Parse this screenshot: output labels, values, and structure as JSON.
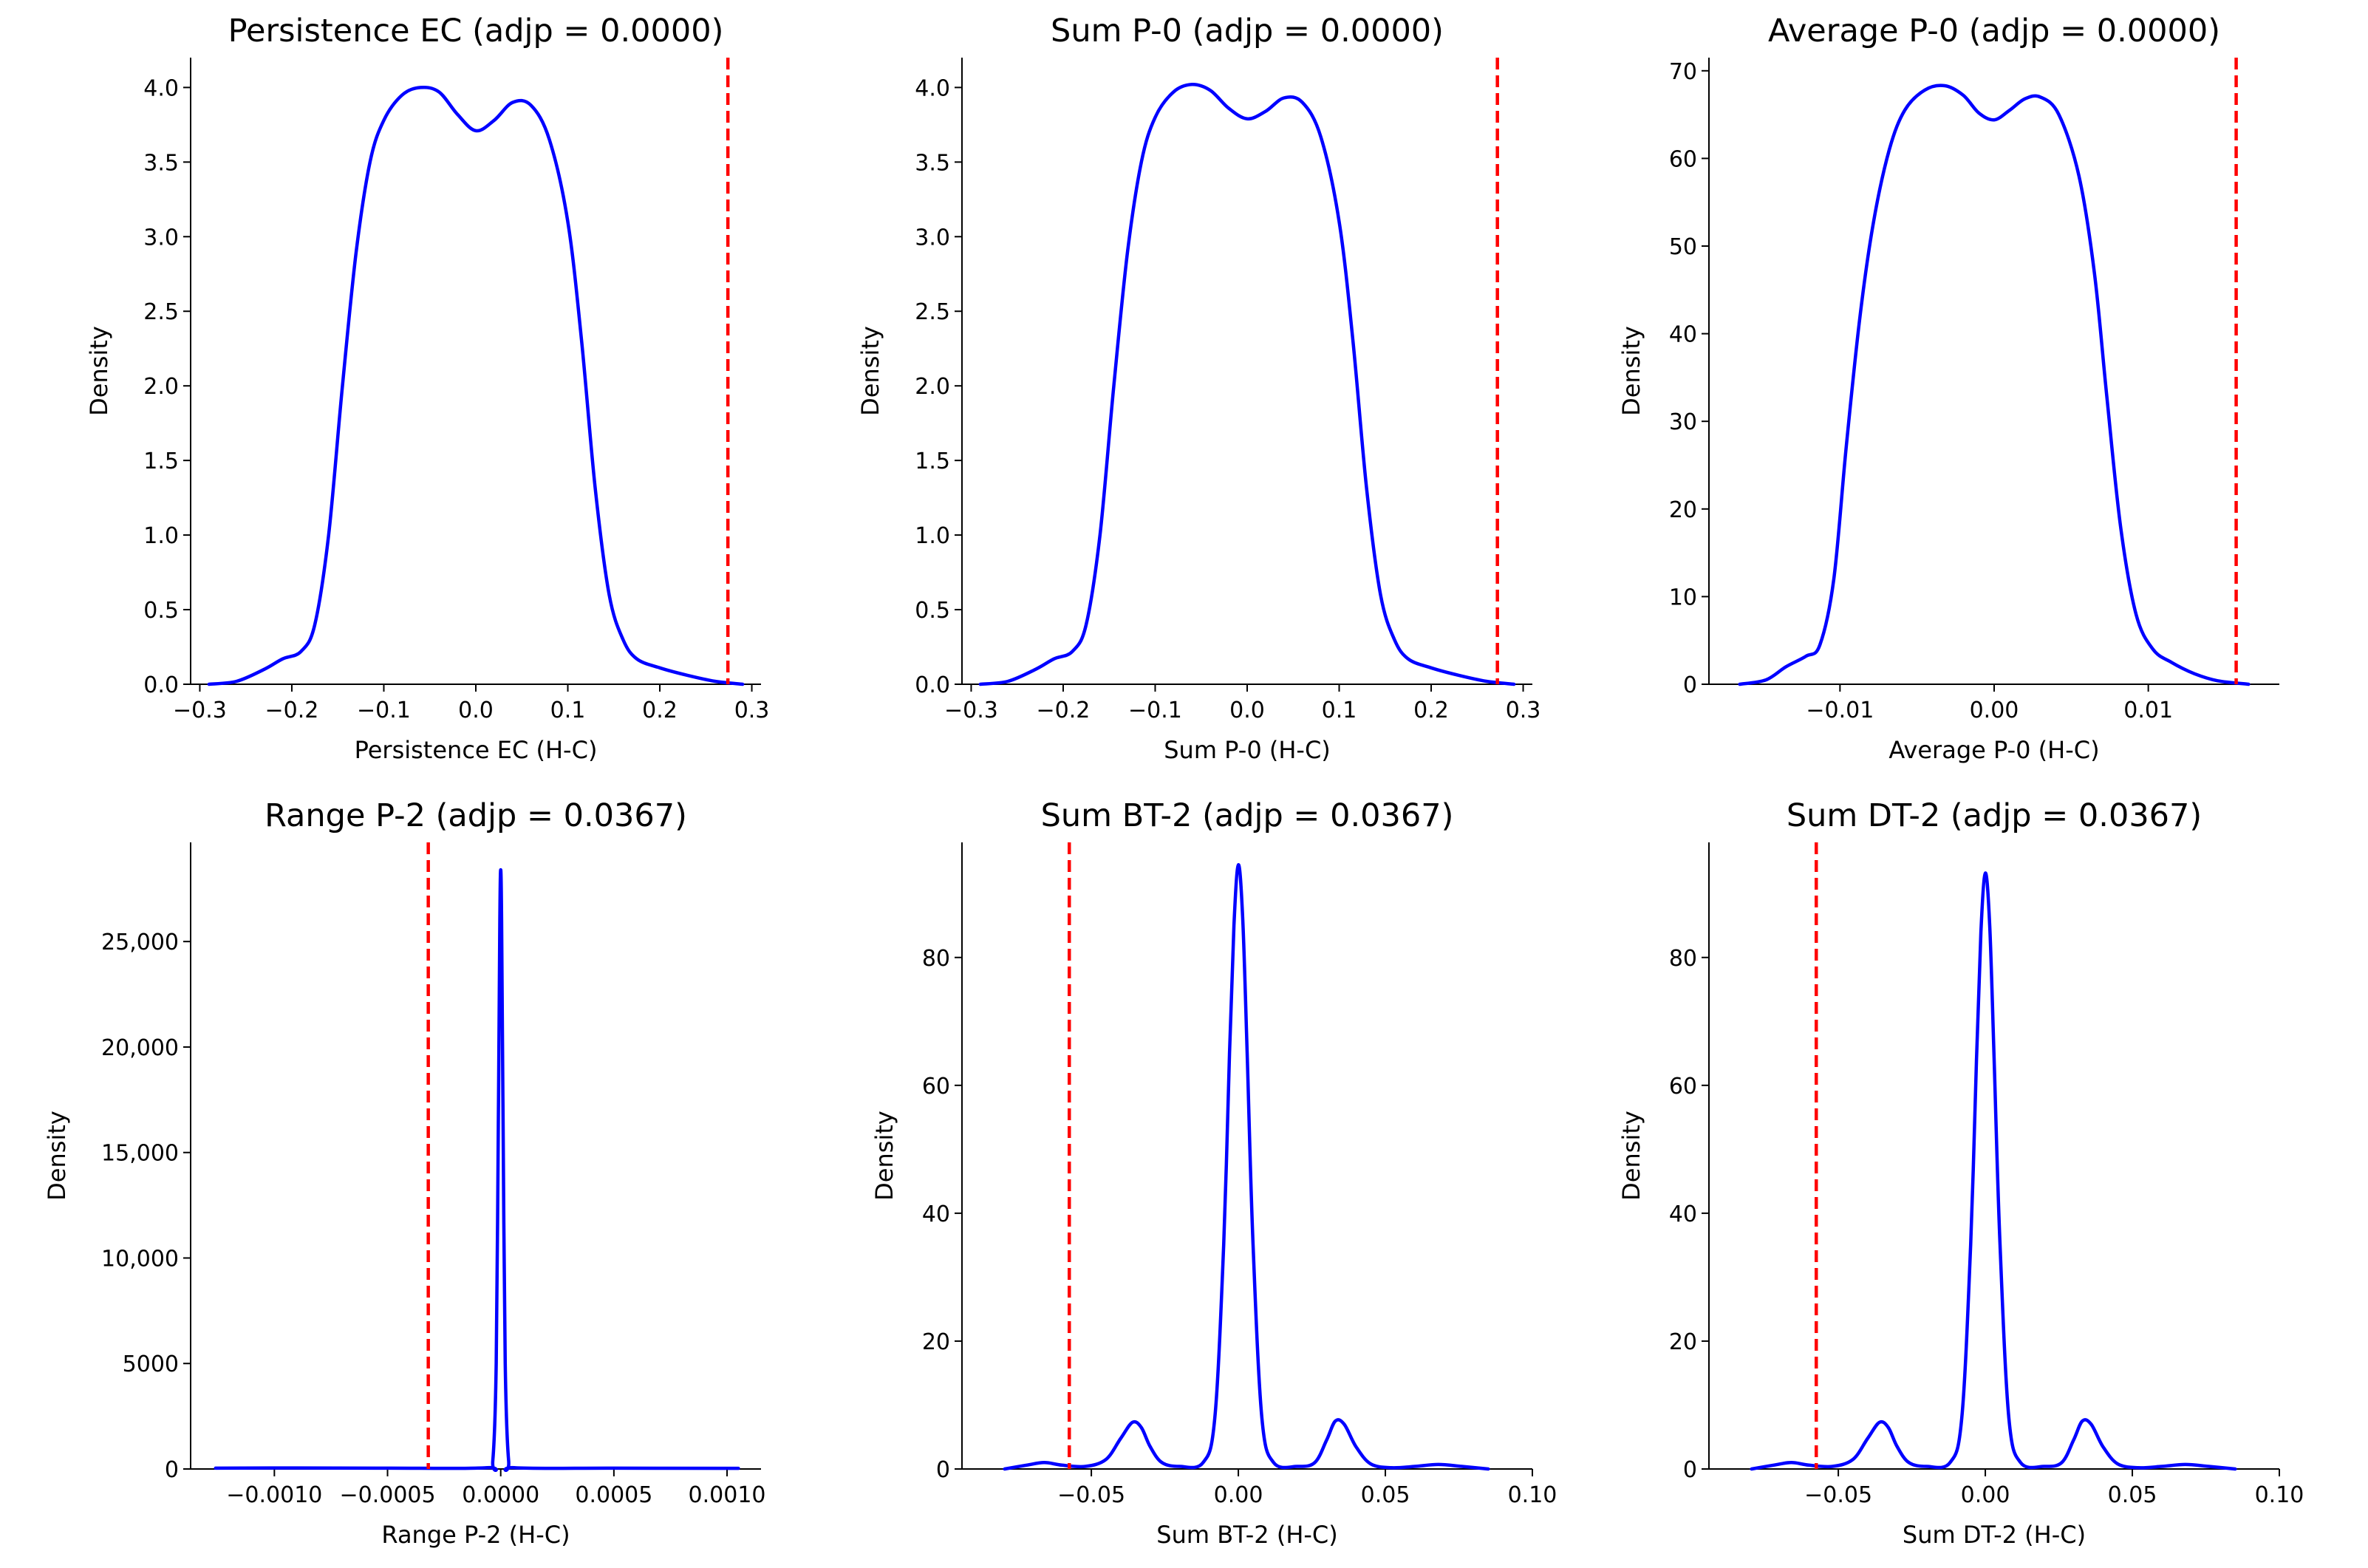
{
  "chart_data": [
    {
      "type": "line",
      "title": "Persistence EC (adjp = 0.0000)",
      "xlabel": "Persistence EC (H-C)",
      "ylabel": "Density",
      "xlim": [
        -0.31,
        0.31
      ],
      "ylim": [
        0,
        4.2
      ],
      "xticks": [
        -0.3,
        -0.2,
        -0.1,
        0.0,
        0.1,
        0.2,
        0.3
      ],
      "xtick_labels": [
        "−0.3",
        "−0.2",
        "−0.1",
        "0.0",
        "0.1",
        "0.2",
        "0.3"
      ],
      "yticks": [
        0,
        0.5,
        1,
        1.5,
        2,
        2.5,
        3,
        3.5,
        4
      ],
      "ytick_labels": [
        "0.0",
        "0.5",
        "1.0",
        "1.5",
        "2.0",
        "2.5",
        "3.0",
        "3.5",
        "4.0"
      ],
      "vline": 0.274,
      "line_color": "#0000ff",
      "vline_color": "#ff0000",
      "series": [
        {
          "name": "KDE",
          "points": [
            [
              -0.29,
              0
            ],
            [
              -0.26,
              0.02
            ],
            [
              -0.23,
              0.1
            ],
            [
              -0.21,
              0.17
            ],
            [
              -0.19,
              0.22
            ],
            [
              -0.175,
              0.4
            ],
            [
              -0.16,
              1.0
            ],
            [
              -0.145,
              2.0
            ],
            [
              -0.13,
              2.9
            ],
            [
              -0.115,
              3.5
            ],
            [
              -0.1,
              3.78
            ],
            [
              -0.08,
              3.95
            ],
            [
              -0.06,
              4.0
            ],
            [
              -0.04,
              3.97
            ],
            [
              -0.02,
              3.82
            ],
            [
              0.0,
              3.71
            ],
            [
              0.02,
              3.78
            ],
            [
              0.04,
              3.9
            ],
            [
              0.06,
              3.88
            ],
            [
              0.08,
              3.65
            ],
            [
              0.1,
              3.1
            ],
            [
              0.115,
              2.3
            ],
            [
              0.13,
              1.3
            ],
            [
              0.145,
              0.6
            ],
            [
              0.16,
              0.3
            ],
            [
              0.175,
              0.17
            ],
            [
              0.2,
              0.11
            ],
            [
              0.23,
              0.06
            ],
            [
              0.26,
              0.02
            ],
            [
              0.29,
              0
            ]
          ]
        }
      ]
    },
    {
      "type": "line",
      "title": "Sum P-0 (adjp = 0.0000)",
      "xlabel": "Sum P-0 (H-C)",
      "ylabel": "Density",
      "xlim": [
        -0.31,
        0.31
      ],
      "ylim": [
        0,
        4.2
      ],
      "xticks": [
        -0.3,
        -0.2,
        -0.1,
        0.0,
        0.1,
        0.2,
        0.3
      ],
      "xtick_labels": [
        "−0.3",
        "−0.2",
        "−0.1",
        "0.0",
        "0.1",
        "0.2",
        "0.3"
      ],
      "yticks": [
        0,
        0.5,
        1,
        1.5,
        2,
        2.5,
        3,
        3.5,
        4
      ],
      "ytick_labels": [
        "0.0",
        "0.5",
        "1.0",
        "1.5",
        "2.0",
        "2.5",
        "3.0",
        "3.5",
        "4.0"
      ],
      "vline": 0.272,
      "line_color": "#0000ff",
      "vline_color": "#ff0000",
      "series": [
        {
          "name": "KDE",
          "points": [
            [
              -0.29,
              0
            ],
            [
              -0.26,
              0.02
            ],
            [
              -0.23,
              0.1
            ],
            [
              -0.21,
              0.17
            ],
            [
              -0.19,
              0.22
            ],
            [
              -0.175,
              0.4
            ],
            [
              -0.16,
              1.0
            ],
            [
              -0.145,
              2.0
            ],
            [
              -0.13,
              2.9
            ],
            [
              -0.115,
              3.5
            ],
            [
              -0.1,
              3.8
            ],
            [
              -0.08,
              3.97
            ],
            [
              -0.06,
              4.02
            ],
            [
              -0.04,
              3.98
            ],
            [
              -0.02,
              3.86
            ],
            [
              0.0,
              3.79
            ],
            [
              0.02,
              3.84
            ],
            [
              0.04,
              3.93
            ],
            [
              0.06,
              3.9
            ],
            [
              0.08,
              3.67
            ],
            [
              0.1,
              3.1
            ],
            [
              0.115,
              2.3
            ],
            [
              0.13,
              1.3
            ],
            [
              0.145,
              0.6
            ],
            [
              0.16,
              0.3
            ],
            [
              0.175,
              0.17
            ],
            [
              0.2,
              0.11
            ],
            [
              0.23,
              0.06
            ],
            [
              0.26,
              0.02
            ],
            [
              0.29,
              0
            ]
          ]
        }
      ]
    },
    {
      "type": "line",
      "title": "Average P-0 (adjp = 0.0000)",
      "xlabel": "Average P-0 (H-C)",
      "ylabel": "Density",
      "xlim": [
        -0.0185,
        0.0185
      ],
      "ylim": [
        0,
        71.5
      ],
      "xticks": [
        -0.01,
        0.0,
        0.01
      ],
      "xtick_labels": [
        "−0.01",
        "0.00",
        "0.01"
      ],
      "yticks": [
        0,
        10,
        20,
        30,
        40,
        50,
        60,
        70
      ],
      "ytick_labels": [
        "0",
        "10",
        "20",
        "30",
        "40",
        "50",
        "60",
        "70"
      ],
      "vline": 0.0157,
      "line_color": "#0000ff",
      "vline_color": "#ff0000",
      "series": [
        {
          "name": "KDE",
          "points": [
            [
              -0.0165,
              0
            ],
            [
              -0.0148,
              0.5
            ],
            [
              -0.0135,
              2
            ],
            [
              -0.0122,
              3.2
            ],
            [
              -0.0113,
              4.5
            ],
            [
              -0.0104,
              12
            ],
            [
              -0.0096,
              27
            ],
            [
              -0.0087,
              42
            ],
            [
              -0.0078,
              53
            ],
            [
              -0.0068,
              61
            ],
            [
              -0.0058,
              65.5
            ],
            [
              -0.0045,
              67.8
            ],
            [
              -0.0032,
              68.3
            ],
            [
              -0.002,
              67.2
            ],
            [
              -0.001,
              65.2
            ],
            [
              0.0,
              64.4
            ],
            [
              0.001,
              65.5
            ],
            [
              0.002,
              66.8
            ],
            [
              0.003,
              67
            ],
            [
              0.0042,
              65
            ],
            [
              0.0055,
              58
            ],
            [
              0.0065,
              47
            ],
            [
              0.0073,
              33
            ],
            [
              0.0082,
              18
            ],
            [
              0.0092,
              8
            ],
            [
              0.0103,
              4
            ],
            [
              0.0115,
              2.5
            ],
            [
              0.013,
              1.2
            ],
            [
              0.0145,
              0.4
            ],
            [
              0.0165,
              0
            ]
          ]
        }
      ]
    },
    {
      "type": "line",
      "title": "Range P-2 (adjp = 0.0367)",
      "xlabel": "Range P-2 (H-C)",
      "ylabel": "Density",
      "xlim": [
        -0.00137,
        0.00115
      ],
      "ylim": [
        0,
        29700
      ],
      "xticks": [
        -0.001,
        -0.0005,
        0.0,
        0.0005,
        0.001
      ],
      "xtick_labels": [
        "−0.0010",
        "−0.0005",
        "0.0000",
        "0.0005",
        "0.0010"
      ],
      "yticks": [
        0,
        5000,
        10000,
        15000,
        20000,
        25000
      ],
      "ytick_labels": [
        "0",
        "5000",
        "10,000",
        "15,000",
        "20,000",
        "25,000"
      ],
      "vline": -0.00032,
      "line_color": "#0000ff",
      "vline_color": "#ff0000",
      "series": [
        {
          "name": "KDE",
          "points": [
            [
              -0.00126,
              40
            ],
            [
              -0.0009,
              50
            ],
            [
              -0.0005,
              40
            ],
            [
              -6e-05,
              60
            ],
            [
              -3.5e-05,
              400
            ],
            [
              -2e-05,
              5000
            ],
            [
              -1e-05,
              17000
            ],
            [
              -4e-06,
              26000
            ],
            [
              0.0,
              28400
            ],
            [
              4e-06,
              26000
            ],
            [
              1e-05,
              17000
            ],
            [
              2e-05,
              5000
            ],
            [
              3.5e-05,
              400
            ],
            [
              6e-05,
              60
            ],
            [
              0.0005,
              40
            ],
            [
              0.00105,
              30
            ]
          ]
        }
      ]
    },
    {
      "type": "line",
      "title": "Sum BT-2 (adjp = 0.0367)",
      "xlabel": "Sum BT-2 (H-C)",
      "ylabel": "Density",
      "xlim": [
        -0.094,
        0.1
      ],
      "ylim": [
        0,
        98
      ],
      "xticks": [
        -0.05,
        0.0,
        0.05,
        0.1
      ],
      "xtick_labels": [
        "−0.05",
        "0.00",
        "0.05",
        "0.10"
      ],
      "yticks": [
        0,
        20,
        40,
        60,
        80
      ],
      "ytick_labels": [
        "0",
        "20",
        "40",
        "60",
        "80"
      ],
      "vline": -0.0575,
      "line_color": "#0000ff",
      "vline_color": "#ff0000",
      "series": [
        {
          "name": "KDE",
          "points": [
            [
              -0.0795,
              0
            ],
            [
              -0.072,
              0.6
            ],
            [
              -0.066,
              1
            ],
            [
              -0.06,
              0.6
            ],
            [
              -0.052,
              0.4
            ],
            [
              -0.045,
              1.5
            ],
            [
              -0.04,
              4.8
            ],
            [
              -0.036,
              7.3
            ],
            [
              -0.033,
              6.5
            ],
            [
              -0.03,
              3.5
            ],
            [
              -0.026,
              1
            ],
            [
              -0.02,
              0.4
            ],
            [
              -0.012,
              1
            ],
            [
              -0.008,
              8
            ],
            [
              -0.005,
              35
            ],
            [
              -0.003,
              65
            ],
            [
              -0.0015,
              85
            ],
            [
              0.0,
              94.5
            ],
            [
              0.0015,
              86
            ],
            [
              0.003,
              65
            ],
            [
              0.005,
              35
            ],
            [
              0.008,
              8
            ],
            [
              0.012,
              1
            ],
            [
              0.02,
              0.4
            ],
            [
              0.026,
              1
            ],
            [
              0.03,
              4.5
            ],
            [
              0.033,
              7.5
            ],
            [
              0.036,
              7
            ],
            [
              0.04,
              3.5
            ],
            [
              0.045,
              0.8
            ],
            [
              0.052,
              0.2
            ],
            [
              0.06,
              0.4
            ],
            [
              0.068,
              0.7
            ],
            [
              0.076,
              0.4
            ],
            [
              0.085,
              0
            ]
          ]
        }
      ]
    },
    {
      "type": "line",
      "title": "Sum DT-2 (adjp = 0.0367)",
      "xlabel": "Sum DT-2 (H-C)",
      "ylabel": "Density",
      "xlim": [
        -0.094,
        0.1
      ],
      "ylim": [
        0,
        98
      ],
      "xticks": [
        -0.05,
        0.0,
        0.05,
        0.1
      ],
      "xtick_labels": [
        "−0.05",
        "0.00",
        "0.05",
        "0.10"
      ],
      "yticks": [
        0,
        20,
        40,
        60,
        80
      ],
      "ytick_labels": [
        "0",
        "20",
        "40",
        "60",
        "80"
      ],
      "vline": -0.0575,
      "line_color": "#0000ff",
      "vline_color": "#ff0000",
      "series": [
        {
          "name": "KDE",
          "points": [
            [
              -0.0795,
              0
            ],
            [
              -0.072,
              0.6
            ],
            [
              -0.066,
              1
            ],
            [
              -0.06,
              0.6
            ],
            [
              -0.052,
              0.4
            ],
            [
              -0.045,
              1.5
            ],
            [
              -0.04,
              4.8
            ],
            [
              -0.036,
              7.3
            ],
            [
              -0.033,
              6.5
            ],
            [
              -0.03,
              3.5
            ],
            [
              -0.026,
              1
            ],
            [
              -0.02,
              0.4
            ],
            [
              -0.012,
              1
            ],
            [
              -0.008,
              8
            ],
            [
              -0.005,
              35
            ],
            [
              -0.003,
              64
            ],
            [
              -0.0015,
              84
            ],
            [
              0.0,
              93.2
            ],
            [
              0.0015,
              85
            ],
            [
              0.003,
              64
            ],
            [
              0.005,
              35
            ],
            [
              0.008,
              8
            ],
            [
              0.012,
              1
            ],
            [
              0.02,
              0.4
            ],
            [
              0.026,
              1
            ],
            [
              0.03,
              4.5
            ],
            [
              0.033,
              7.5
            ],
            [
              0.036,
              7
            ],
            [
              0.04,
              3.5
            ],
            [
              0.045,
              0.8
            ],
            [
              0.052,
              0.2
            ],
            [
              0.06,
              0.4
            ],
            [
              0.068,
              0.7
            ],
            [
              0.076,
              0.4
            ],
            [
              0.085,
              0
            ]
          ]
        }
      ]
    }
  ]
}
